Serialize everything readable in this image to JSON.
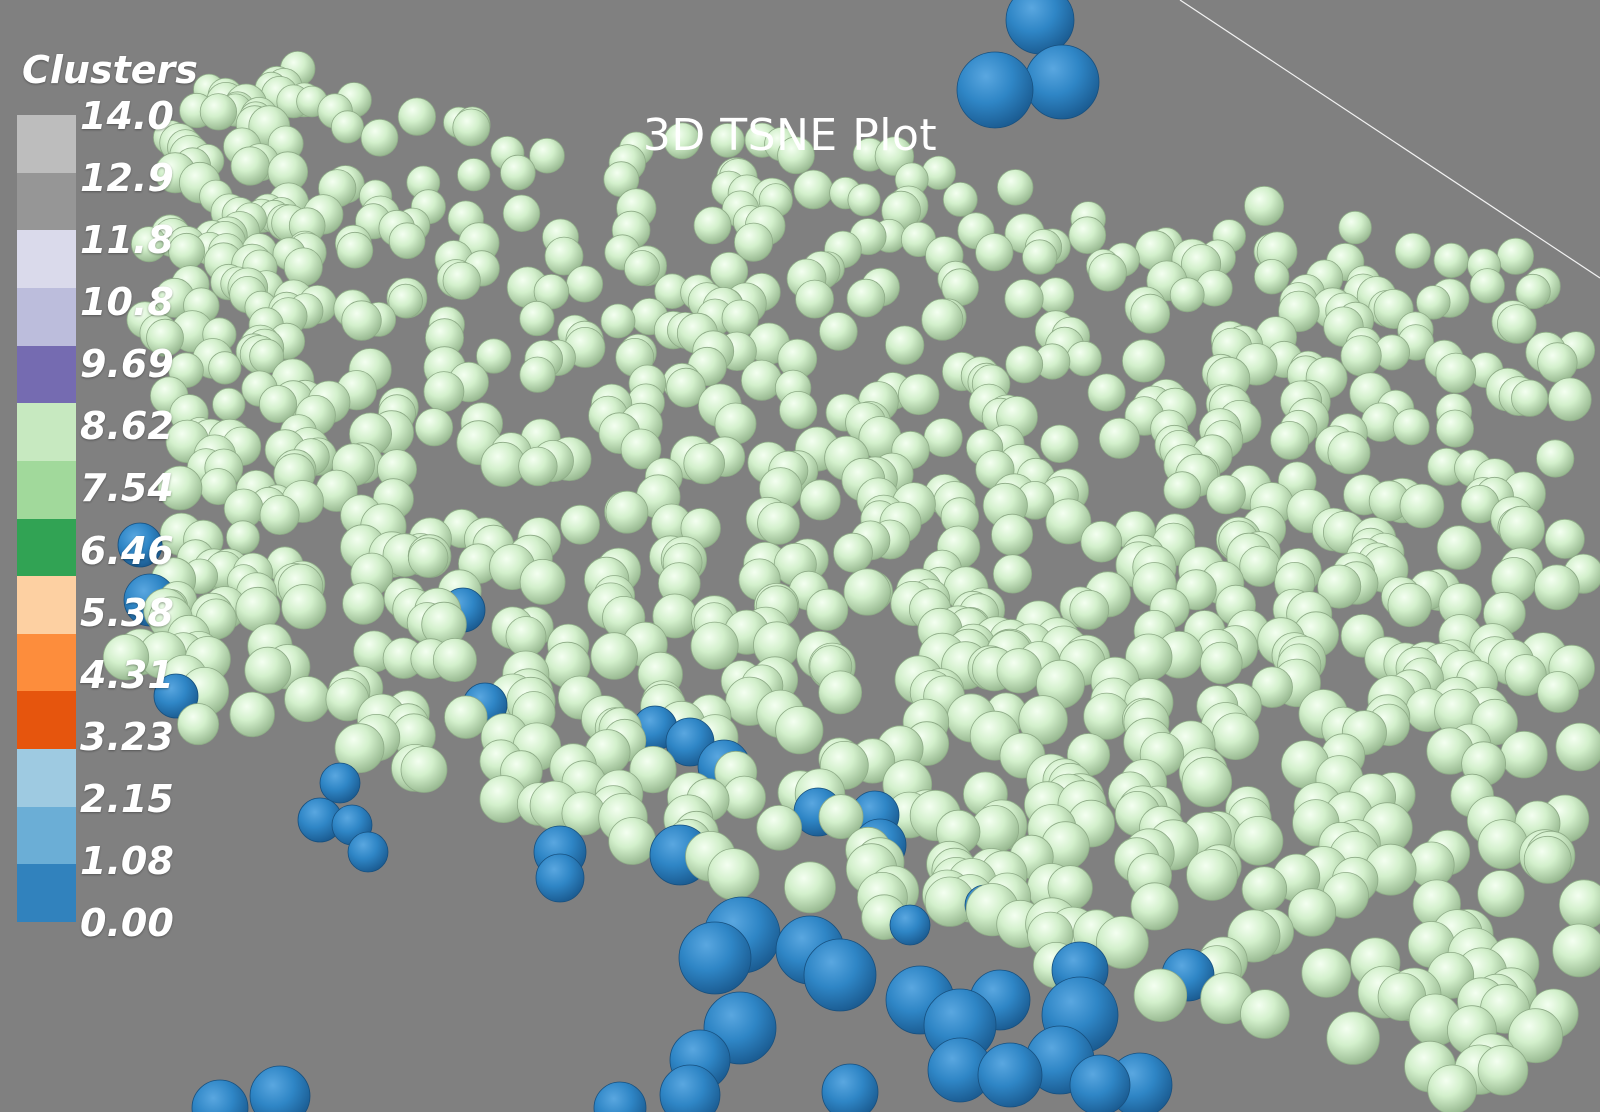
{
  "chart_data": {
    "type": "scatter3d",
    "title": "3D TSNE Plot",
    "colorbar": {
      "title": "Clusters",
      "min": 0.0,
      "max": 14.0,
      "ticks": [
        "14.0",
        "12.9",
        "11.8",
        "10.8",
        "9.69",
        "8.62",
        "7.54",
        "6.46",
        "5.38",
        "4.31",
        "3.23",
        "2.15",
        "1.08",
        "0.00"
      ],
      "colors_top_to_bottom": [
        "#bdbdbd",
        "#969696",
        "#dadaeb",
        "#bcbddc",
        "#756bb1",
        "#c7e9c0",
        "#a1d99b",
        "#31a354",
        "#fdd0a2",
        "#fd8d3c",
        "#e6550d",
        "#9ecae1",
        "#6baed6",
        "#3182bd"
      ]
    },
    "series": [
      {
        "value": 8.0,
        "color": "#c7e9c0",
        "count": 900
      },
      {
        "value": 0.0,
        "color": "#3182bd",
        "count": 45
      }
    ],
    "legend_position": "top-left",
    "grid": false
  }
}
